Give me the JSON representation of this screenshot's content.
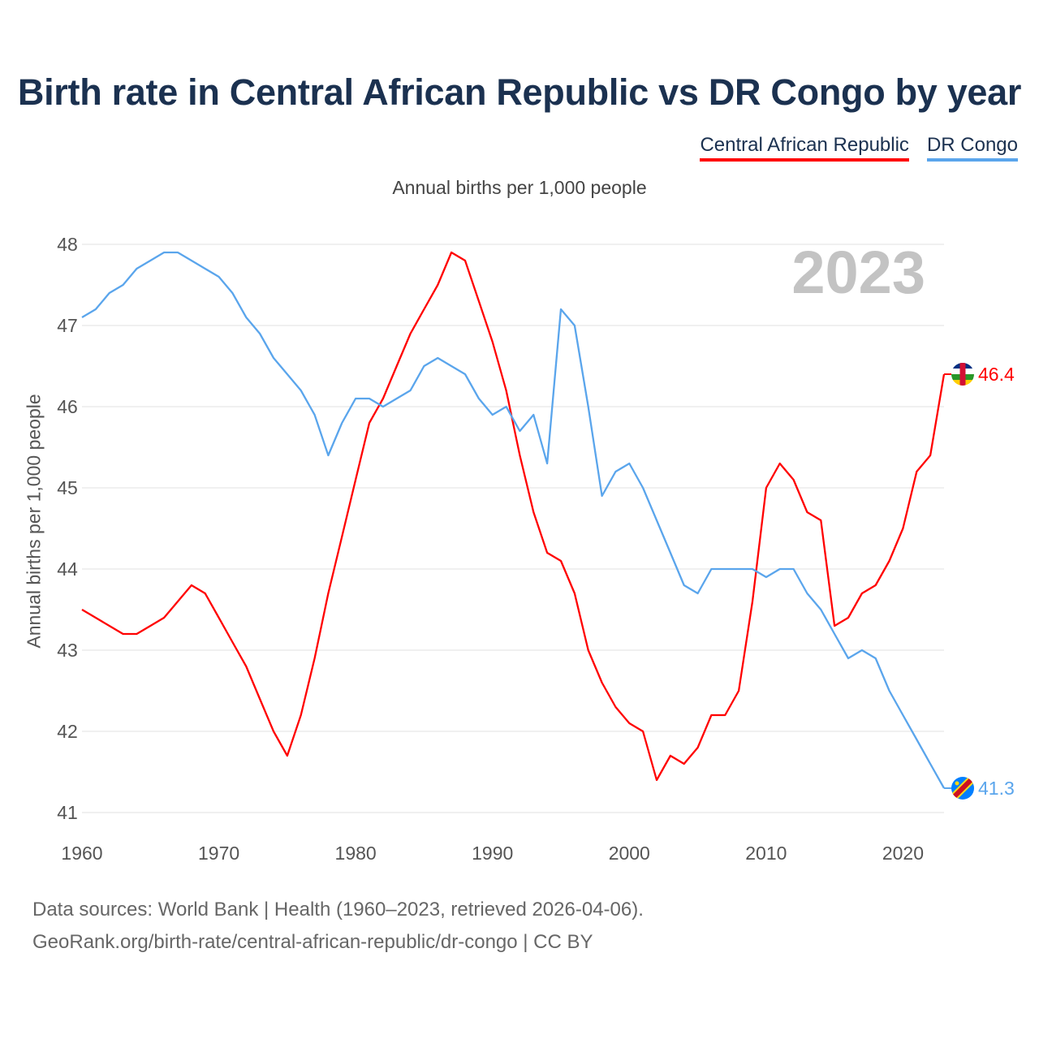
{
  "chart_data": {
    "type": "line",
    "title": "Birth rate in Central African Republic vs DR Congo by year",
    "subtitle": "Annual births per 1,000 people",
    "ylabel": "Annual births per 1,000 people",
    "xlabel": "",
    "current_year": "2023",
    "xlim": [
      1960,
      2023
    ],
    "ylim": [
      41,
      48
    ],
    "yticks": [
      41,
      42,
      43,
      44,
      45,
      46,
      47,
      48
    ],
    "xticks": [
      1960,
      1970,
      1980,
      1990,
      2000,
      2010,
      2020
    ],
    "grid": true,
    "legend_position": "top-right",
    "x": [
      1960,
      1961,
      1962,
      1963,
      1964,
      1965,
      1966,
      1967,
      1968,
      1969,
      1970,
      1971,
      1972,
      1973,
      1974,
      1975,
      1976,
      1977,
      1978,
      1979,
      1980,
      1981,
      1982,
      1983,
      1984,
      1985,
      1986,
      1987,
      1988,
      1989,
      1990,
      1991,
      1992,
      1993,
      1994,
      1995,
      1996,
      1997,
      1998,
      1999,
      2000,
      2001,
      2002,
      2003,
      2004,
      2005,
      2006,
      2007,
      2008,
      2009,
      2010,
      2011,
      2012,
      2013,
      2014,
      2015,
      2016,
      2017,
      2018,
      2019,
      2020,
      2021,
      2022,
      2023
    ],
    "series": [
      {
        "name": "Central African Republic",
        "color": "#ff0000",
        "end_label": "46.4",
        "values": [
          43.5,
          43.4,
          43.3,
          43.2,
          43.2,
          43.3,
          43.4,
          43.6,
          43.8,
          43.7,
          43.4,
          43.1,
          42.8,
          42.4,
          42.0,
          41.7,
          42.2,
          42.9,
          43.7,
          44.4,
          45.1,
          45.8,
          46.1,
          46.5,
          46.9,
          47.2,
          47.5,
          47.9,
          47.8,
          47.3,
          46.8,
          46.2,
          45.4,
          44.7,
          44.2,
          44.1,
          43.7,
          43.0,
          42.6,
          42.3,
          42.1,
          42.0,
          41.4,
          41.7,
          41.6,
          41.8,
          42.2,
          42.2,
          42.5,
          43.6,
          45.0,
          45.3,
          45.1,
          44.7,
          44.6,
          43.3,
          43.4,
          43.7,
          43.8,
          44.1,
          44.5,
          45.2,
          45.4,
          46.4
        ]
      },
      {
        "name": "DR Congo",
        "color": "#5aa5ec",
        "end_label": "41.3",
        "values": [
          47.1,
          47.2,
          47.4,
          47.5,
          47.7,
          47.8,
          47.9,
          47.9,
          47.8,
          47.7,
          47.6,
          47.4,
          47.1,
          46.9,
          46.6,
          46.4,
          46.2,
          45.9,
          45.4,
          45.8,
          46.1,
          46.1,
          46.0,
          46.1,
          46.2,
          46.5,
          46.6,
          46.5,
          46.4,
          46.1,
          45.9,
          46.0,
          45.7,
          45.9,
          45.3,
          47.2,
          47.0,
          46.0,
          44.9,
          45.2,
          45.3,
          45.0,
          44.6,
          44.2,
          43.8,
          43.7,
          44.0,
          44.0,
          44.0,
          44.0,
          43.9,
          44.0,
          44.0,
          43.7,
          43.5,
          43.2,
          42.9,
          43.0,
          42.9,
          42.5,
          42.2,
          41.9,
          41.6,
          41.3
        ]
      }
    ]
  },
  "footer": {
    "line1": "Data sources: World Bank | Health (1960–2023, retrieved 2026-04-06).",
    "line2": "GeoRank.org/birth-rate/central-african-republic/dr-congo | CC BY"
  }
}
